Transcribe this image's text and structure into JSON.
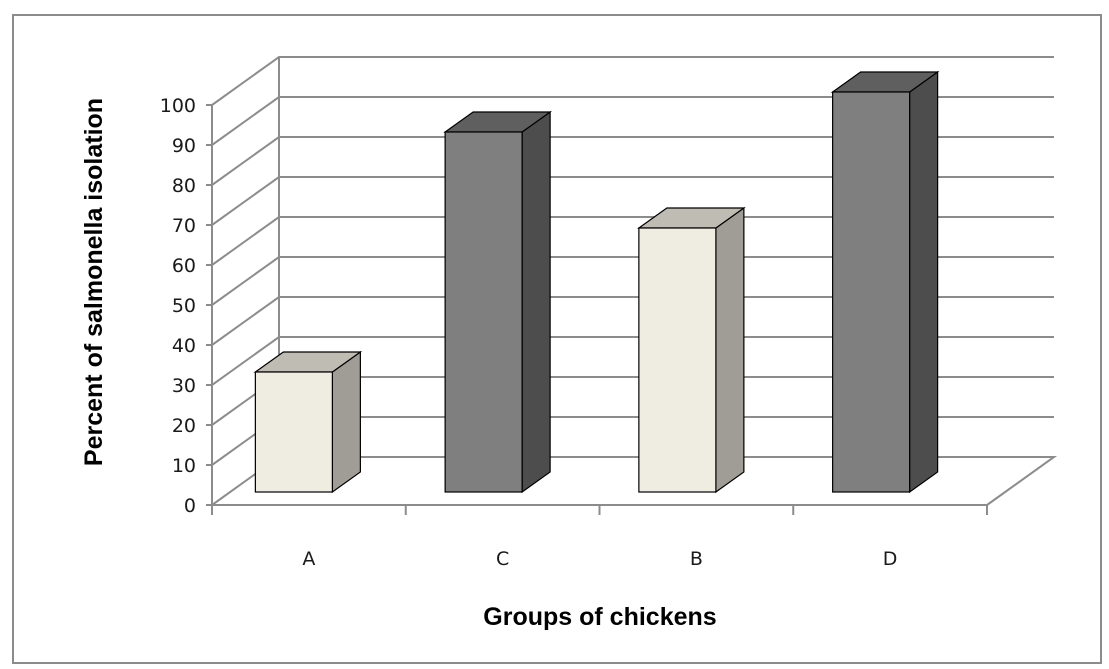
{
  "chart_data": {
    "type": "bar",
    "style": "3d-column",
    "categories": [
      "A",
      "C",
      "B",
      "D"
    ],
    "values": [
      30,
      90,
      66,
      100
    ],
    "xlabel": "Groups of chickens",
    "ylabel": "Percent of salmonella isolation",
    "ylim": [
      0,
      100
    ],
    "yticks": [
      0,
      10,
      20,
      30,
      40,
      50,
      60,
      70,
      80,
      90,
      100
    ],
    "grid": true,
    "legend": "none",
    "bar_colors": [
      "#efede2",
      "#7f7f7f",
      "#efede2",
      "#7f7f7f"
    ],
    "bar_side_colors": [
      "#a09d96",
      "#4d4d4d",
      "#a09d96",
      "#4d4d4d"
    ],
    "bar_top_colors": [
      "#bfbcb3",
      "#5f5f5f",
      "#bfbcb3",
      "#5f5f5f"
    ],
    "gridline_color": "#8c8c8c"
  }
}
